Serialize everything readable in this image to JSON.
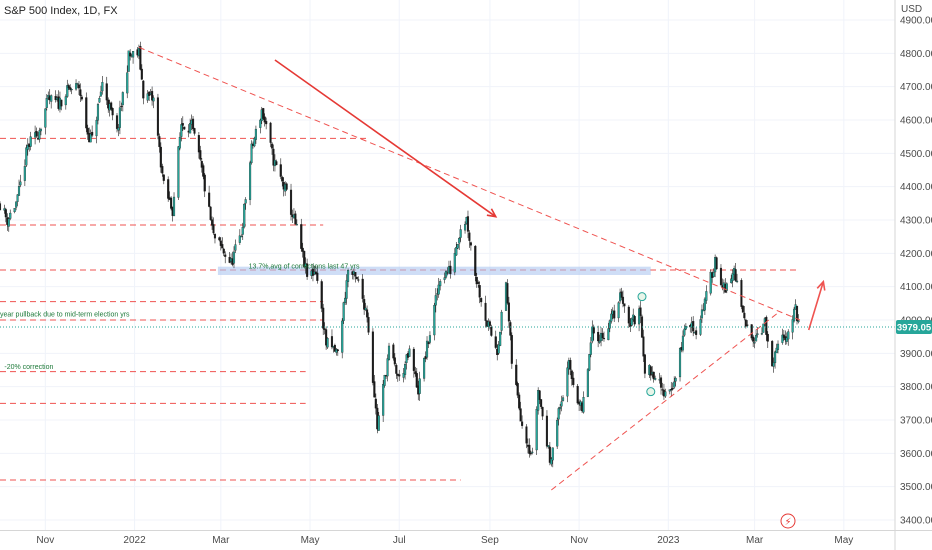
{
  "chart_data": {
    "type": "candlestick",
    "title": "S&P 500 Index, 1D, FX",
    "currency": "USD",
    "last_price_label": "3979.05",
    "last_price": 3979.05,
    "ylim": [
      3370,
      4960
    ],
    "y_ticks": [
      {
        "value": 3400,
        "label": "3400.00"
      },
      {
        "value": 3500,
        "label": "3500.00"
      },
      {
        "value": 3600,
        "label": "3600.00"
      },
      {
        "value": 3700,
        "label": "3700.00"
      },
      {
        "value": 3800,
        "label": "3800.00"
      },
      {
        "value": 3900,
        "label": "3900.00"
      },
      {
        "value": 4000,
        "label": "4000.00"
      },
      {
        "value": 4100,
        "label": "4100.00"
      },
      {
        "value": 4200,
        "label": "4200.00"
      },
      {
        "value": 4300,
        "label": "4300.00"
      },
      {
        "value": 4400,
        "label": "4400.00"
      },
      {
        "value": 4500,
        "label": "4500.00"
      },
      {
        "value": 4600,
        "label": "4600.00"
      },
      {
        "value": 4700,
        "label": "4700.00"
      },
      {
        "value": 4800,
        "label": "4800.00"
      },
      {
        "value": 4900,
        "label": "4900.00"
      }
    ],
    "x_ticks": [
      {
        "date": "2021-11-01",
        "label": "Nov"
      },
      {
        "date": "2022-01-01",
        "label": "2022"
      },
      {
        "date": "2022-03-01",
        "label": "Mar"
      },
      {
        "date": "2022-05-01",
        "label": "May"
      },
      {
        "date": "2022-07-01",
        "label": "Jul"
      },
      {
        "date": "2022-09-01",
        "label": "Sep"
      },
      {
        "date": "2022-11-01",
        "label": "Nov"
      },
      {
        "date": "2023-01-01",
        "label": "2023"
      },
      {
        "date": "2023-03-01",
        "label": "Mar"
      },
      {
        "date": "2023-05-01",
        "label": "May"
      }
    ],
    "xlim": [
      "2021-10-01",
      "2023-06-05"
    ],
    "grid": true,
    "price_path": [
      [
        "2021-10-01",
        4350
      ],
      [
        "2021-10-06",
        4300
      ],
      [
        "2021-10-13",
        4360
      ],
      [
        "2021-10-20",
        4520
      ],
      [
        "2021-10-27",
        4560
      ],
      [
        "2021-11-03",
        4660
      ],
      [
        "2021-11-10",
        4650
      ],
      [
        "2021-11-17",
        4690
      ],
      [
        "2021-11-24",
        4700
      ],
      [
        "2021-11-30",
        4560
      ],
      [
        "2021-12-03",
        4540
      ],
      [
        "2021-12-10",
        4710
      ],
      [
        "2021-12-20",
        4560
      ],
      [
        "2021-12-28",
        4790
      ],
      [
        "2022-01-04",
        4800
      ],
      [
        "2022-01-07",
        4680
      ],
      [
        "2022-01-14",
        4660
      ],
      [
        "2022-01-21",
        4400
      ],
      [
        "2022-01-27",
        4330
      ],
      [
        "2022-02-02",
        4590
      ],
      [
        "2022-02-09",
        4580
      ],
      [
        "2022-02-15",
        4470
      ],
      [
        "2022-02-24",
        4250
      ],
      [
        "2022-03-08",
        4170
      ],
      [
        "2022-03-15",
        4260
      ],
      [
        "2022-03-22",
        4510
      ],
      [
        "2022-03-29",
        4630
      ],
      [
        "2022-04-06",
        4480
      ],
      [
        "2022-04-14",
        4390
      ],
      [
        "2022-04-22",
        4270
      ],
      [
        "2022-04-29",
        4130
      ],
      [
        "2022-05-05",
        4150
      ],
      [
        "2022-05-12",
        3930
      ],
      [
        "2022-05-20",
        3900
      ],
      [
        "2022-05-27",
        4150
      ],
      [
        "2022-06-03",
        4110
      ],
      [
        "2022-06-09",
        4020
      ],
      [
        "2022-06-16",
        3680
      ],
      [
        "2022-06-24",
        3910
      ],
      [
        "2022-07-01",
        3820
      ],
      [
        "2022-07-08",
        3900
      ],
      [
        "2022-07-14",
        3790
      ],
      [
        "2022-07-22",
        3960
      ],
      [
        "2022-07-29",
        4130
      ],
      [
        "2022-08-05",
        4150
      ],
      [
        "2022-08-12",
        4280
      ],
      [
        "2022-08-16",
        4305
      ],
      [
        "2022-08-22",
        4140
      ],
      [
        "2022-08-30",
        3990
      ],
      [
        "2022-09-06",
        3910
      ],
      [
        "2022-09-12",
        4110
      ],
      [
        "2022-09-16",
        3875
      ],
      [
        "2022-09-23",
        3690
      ],
      [
        "2022-09-30",
        3590
      ],
      [
        "2022-10-04",
        3790
      ],
      [
        "2022-10-12",
        3580
      ],
      [
        "2022-10-18",
        3720
      ],
      [
        "2022-10-25",
        3860
      ],
      [
        "2022-11-03",
        3720
      ],
      [
        "2022-11-10",
        3960
      ],
      [
        "2022-11-17",
        3950
      ],
      [
        "2022-11-25",
        4020
      ],
      [
        "2022-11-30",
        4080
      ],
      [
        "2022-12-05",
        3990
      ],
      [
        "2022-12-13",
        4020
      ],
      [
        "2022-12-16",
        3850
      ],
      [
        "2022-12-23",
        3840
      ],
      [
        "2022-12-28",
        3780
      ],
      [
        "2023-01-05",
        3810
      ],
      [
        "2023-01-13",
        3990
      ],
      [
        "2023-01-20",
        3970
      ],
      [
        "2023-01-27",
        4070
      ],
      [
        "2023-02-02",
        4180
      ],
      [
        "2023-02-09",
        4080
      ],
      [
        "2023-02-15",
        4150
      ],
      [
        "2023-02-22",
        3990
      ],
      [
        "2023-03-01",
        3950
      ],
      [
        "2023-03-08",
        3990
      ],
      [
        "2023-03-13",
        3850
      ],
      [
        "2023-03-17",
        3920
      ],
      [
        "2023-03-24",
        3970
      ],
      [
        "2023-03-29",
        4030
      ],
      [
        "2023-04-01",
        3980
      ]
    ],
    "annotations": [
      {
        "text": "13.7%,avg of corrections last 47 yrs",
        "date": "2022-03-20",
        "value": 4155
      },
      {
        "text": "year pullback due to mid-term election yrs",
        "date": "2021-10-01",
        "value": 4010
      },
      {
        "text": "-20% correction",
        "date": "2021-10-04",
        "value": 3853
      }
    ],
    "horizontal_levels": [
      {
        "value": 4545,
        "start": "2021-10-01",
        "end": "2022-06-10",
        "color": "#ef5350"
      },
      {
        "value": 4285,
        "start": "2021-10-01",
        "end": "2022-05-10",
        "color": "#ef5350"
      },
      {
        "value": 4150,
        "start": "2021-10-01",
        "end": "2023-04-01",
        "color": "#ef5350"
      },
      {
        "value": 4055,
        "start": "2021-10-01",
        "end": "2022-05-10",
        "color": "#ef5350"
      },
      {
        "value": 4000,
        "start": "2021-10-01",
        "end": "2022-05-10",
        "color": "#ef5350"
      },
      {
        "value": 3845,
        "start": "2021-10-01",
        "end": "2022-04-28",
        "color": "#ef5350"
      },
      {
        "value": 3750,
        "start": "2021-10-01",
        "end": "2022-04-28",
        "color": "#ef5350"
      },
      {
        "value": 3520,
        "start": "2021-10-01",
        "end": "2022-08-12",
        "color": "#ef5350"
      }
    ],
    "trendlines": [
      {
        "from": [
          "2022-01-04",
          4818
        ],
        "to": [
          "2023-04-01",
          4000
        ],
        "color": "#ef5350",
        "dashed": true
      },
      {
        "from": [
          "2022-10-13",
          3490
        ],
        "to": [
          "2023-03-18",
          4025
        ],
        "color": "#ef5350",
        "dashed": true
      }
    ],
    "arrows": [
      {
        "from": [
          "2022-04-07",
          4780
        ],
        "to": [
          "2022-09-05",
          4310
        ],
        "color": "#e53935"
      },
      {
        "from": [
          "2023-04-07",
          3970
        ],
        "to": [
          "2023-04-17",
          4115
        ],
        "color": "#ef5350"
      }
    ],
    "zone": {
      "start": "2022-02-27",
      "end": "2022-12-20",
      "low": 4135,
      "high": 4160,
      "color": "#aec6f0"
    },
    "last_price_line_color": "#26a69a",
    "up_color": "#26a69a",
    "down_color": "#ef5350",
    "candle_color": "#1a1a1a"
  }
}
